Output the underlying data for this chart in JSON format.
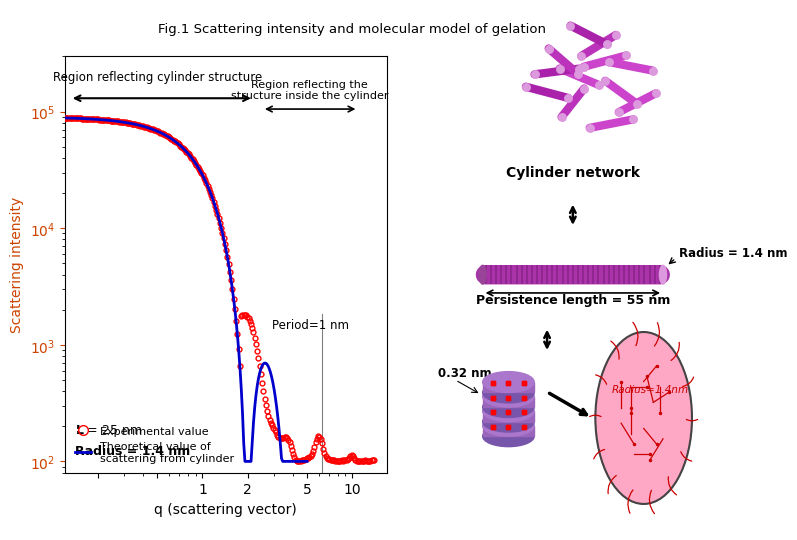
{
  "title": "Fig.1 Scattering intensity and molecular model of gelation",
  "xlabel": "q (scattering vector)",
  "ylabel": "Scattering intensity",
  "xlim": [
    0.12,
    17
  ],
  "ylim": [
    80,
    300000
  ],
  "annotation_cylinder_region": "Region reflecting cylinder structure",
  "annotation_inner_region": "Region reflecting the\nstructure inside the cylinder",
  "annotation_period": "Period=1 nm",
  "legend_exp": "Experimental value",
  "legend_theory": "Theoretical value of\nscattering from cylinder",
  "legend_L": "L = 25 nm",
  "legend_R": "Radius = 1.4 nm",
  "exp_color": "#ff0000",
  "theory_color": "#0000cc",
  "cylinder_network_label": "Cylinder network",
  "radius_label": "Radius = 1.4 nm",
  "persistence_label": "Persistence length = 55 nm",
  "spacing_label": "0.32 nm",
  "molecule_radius_label": "Radius=1.4nm"
}
